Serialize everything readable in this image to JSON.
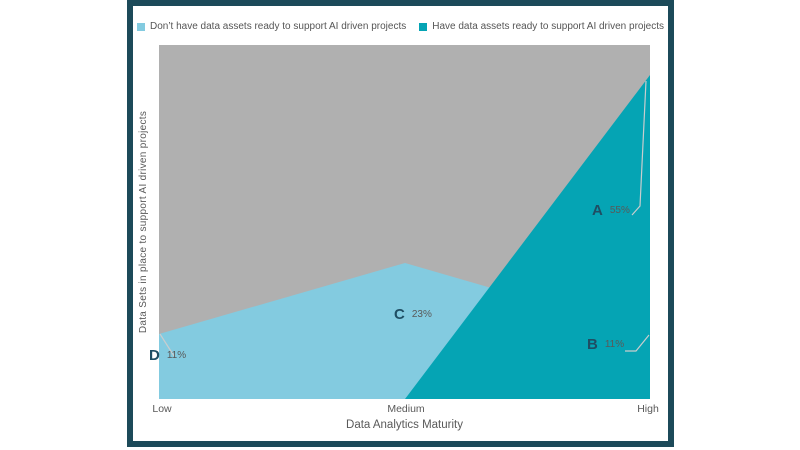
{
  "frame": {
    "border_color": "#1C4A59"
  },
  "chart_data": {
    "type": "area",
    "categories": [
      "Low",
      "Medium",
      "High"
    ],
    "series": [
      {
        "name": "Don’t have data assets ready to support AI driven projects",
        "values": [
          11,
          23,
          11
        ],
        "color": "#83CBE0"
      },
      {
        "name": "Have data assets ready to support AI driven projects",
        "values": [
          0,
          0,
          55
        ],
        "color": "#05A4B4"
      }
    ],
    "xlabel": "Data Analytics Maturity",
    "ylabel": "Data Sets in place to support AI driven projects",
    "ylim": [
      0,
      60
    ],
    "background_color": "#B0B0B0",
    "grid": false,
    "legend_position": "top",
    "annotations": [
      {
        "label": "A",
        "text": "55%",
        "series": 1,
        "category": "High",
        "value": 55
      },
      {
        "label": "B",
        "text": "11%",
        "series": 0,
        "category": "High",
        "value": 11
      },
      {
        "label": "C",
        "text": "23%",
        "series": 0,
        "category": "Medium",
        "value": 23
      },
      {
        "label": "D",
        "text": "11%",
        "series": 0,
        "category": "Low",
        "value": 11
      }
    ]
  }
}
